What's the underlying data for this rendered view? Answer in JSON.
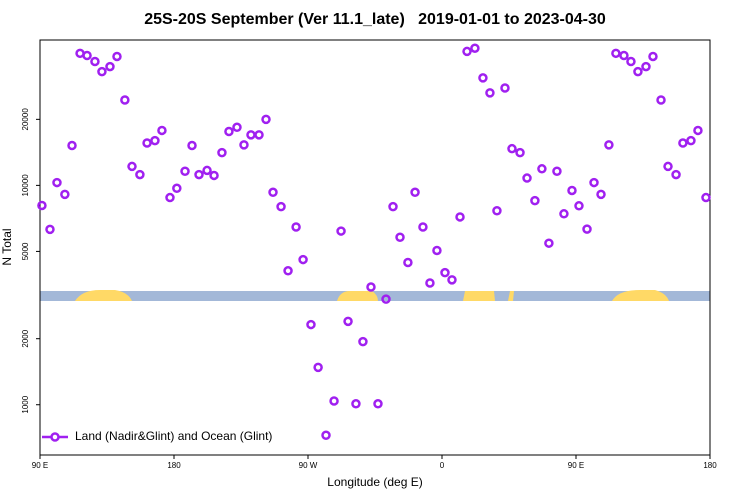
{
  "chart_data": {
    "type": "scatter",
    "title": "25S-20S September (Ver 11.1_late)   2019-01-01 to 2023-04-30",
    "x_label": "Longitude (deg E)",
    "y_label": "N Total",
    "series": [
      {
        "name": "Land (Nadir&Glint) and Ocean (Glint)",
        "color": "#a020f0",
        "x": [
          91.3,
          96.7,
          101.4,
          106.7,
          111.5,
          116.9,
          121.6,
          126.9,
          131.6,
          137.0,
          141.7,
          147.0,
          151.8,
          157.1,
          161.9,
          167.2,
          171.9,
          177.3,
          181.9,
          187.4,
          192.1,
          196.8,
          202.2,
          206.9,
          212.2,
          216.9,
          222.3,
          227.0,
          231.7,
          237.1,
          241.8,
          246.5,
          251.9,
          256.6,
          262.0,
          266.7,
          272.0,
          276.8,
          282.1,
          287.5,
          292.2,
          296.9,
          302.2,
          306.9,
          312.3,
          317.0,
          322.4,
          327.1,
          331.8,
          337.1,
          341.9,
          347.2,
          351.9,
          356.6,
          362.0,
          366.7,
          372.1,
          376.8,
          382.1,
          387.5,
          392.2,
          396.9,
          402.3,
          407.0,
          412.4,
          417.1,
          422.4,
          427.1,
          431.8,
          437.2,
          441.9,
          447.3,
          452.0,
          457.4,
          462.1,
          466.8,
          472.1,
          476.8,
          482.2,
          486.9,
          491.6,
          497.0,
          501.7,
          507.1,
          511.8,
          517.2,
          521.8,
          527.2,
          531.9,
          537.3
        ],
        "values": [
          8100,
          6300,
          10300,
          9100,
          15200,
          40000,
          39100,
          36700,
          33000,
          34800,
          38700,
          24500,
          12200,
          11200,
          15600,
          16000,
          17800,
          8800,
          9700,
          11600,
          15200,
          11200,
          11700,
          11100,
          14100,
          17600,
          18400,
          15300,
          17000,
          17000,
          20000,
          9300,
          8000,
          4080,
          6460,
          4590,
          2320,
          1480,
          726,
          1040,
          6190,
          2400,
          1010,
          1940,
          3440,
          1010,
          3030,
          8000,
          5800,
          4450,
          9300,
          6460,
          3590,
          5050,
          4000,
          3710,
          7180,
          40800,
          42200,
          30900,
          26400,
          7660,
          27800,
          14700,
          14100,
          10800,
          8520,
          11900,
          5450,
          11600,
          7420,
          9480,
          8070,
          6320,
          10300,
          9100,
          15300,
          40000,
          39100,
          36700,
          33000,
          34800,
          38700,
          24500,
          12200,
          11200,
          15600,
          16000,
          17800,
          8800
        ]
      }
    ],
    "xlim": [
      90,
      540
    ],
    "xticks": [
      {
        "value": 90,
        "label": "90 E"
      },
      180,
      {
        "value": 270,
        "label": "90 W"
      },
      {
        "value": 360,
        "label": "0"
      },
      {
        "value": 450,
        "label": "90 E"
      },
      {
        "value": 540,
        "label": "180"
      }
    ],
    "ylim": [
      590,
      46000
    ],
    "log_y": true,
    "yticks": [
      1000,
      2000,
      5000,
      10000,
      20000
    ],
    "legend": "lower left"
  }
}
